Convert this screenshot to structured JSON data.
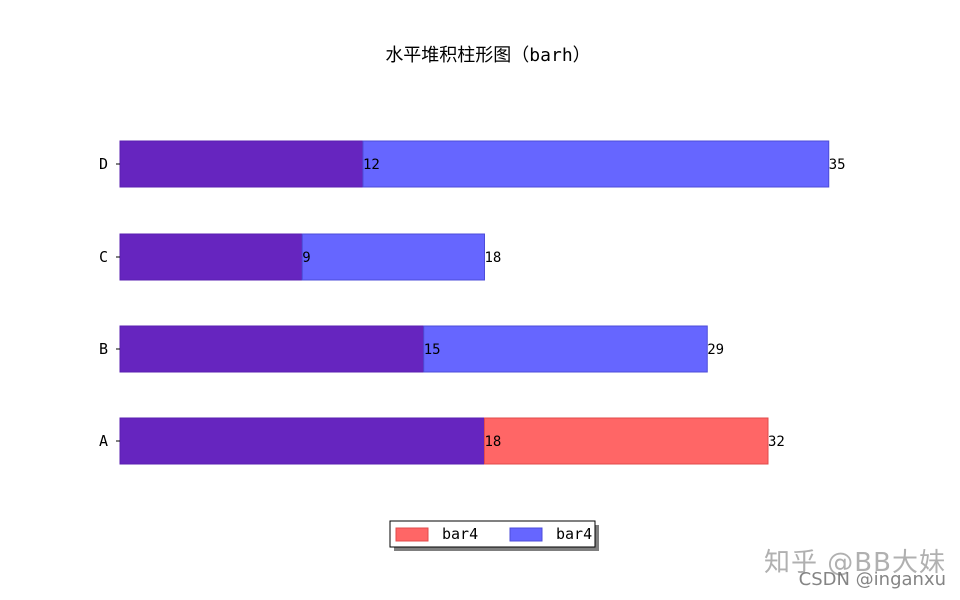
{
  "chart_data": {
    "type": "bar",
    "orientation": "horizontal",
    "stacked": true,
    "title": "水平堆积柱形图（barh）",
    "xlabel": "",
    "ylabel": "",
    "categories": [
      "A",
      "B",
      "C",
      "D"
    ],
    "series": [
      {
        "name": "",
        "values": [
          18,
          15,
          9,
          12
        ],
        "colors": [
          "#6625bf",
          "#6625bf",
          "#6625bf",
          "#6625bf"
        ]
      },
      {
        "name": "",
        "values": [
          14,
          14,
          9,
          23
        ],
        "colors": [
          "#ff6666",
          "#6666ff",
          "#6666ff",
          "#6666ff"
        ]
      }
    ],
    "data_labels": {
      "inner": [
        "18",
        "15",
        "9",
        "12"
      ],
      "total": [
        "32",
        "29",
        "18",
        "35"
      ]
    },
    "xlim": [
      0,
      35
    ],
    "grid": false,
    "legend": {
      "placement": "bottom-center",
      "entries": [
        {
          "label": "bar4",
          "color": "#ff6666"
        },
        {
          "label": "bar4",
          "color": "#6666ff"
        }
      ]
    }
  },
  "watermark": {
    "line1": "知乎 @BB大妹",
    "line2": "CSDN @inganxu"
  }
}
